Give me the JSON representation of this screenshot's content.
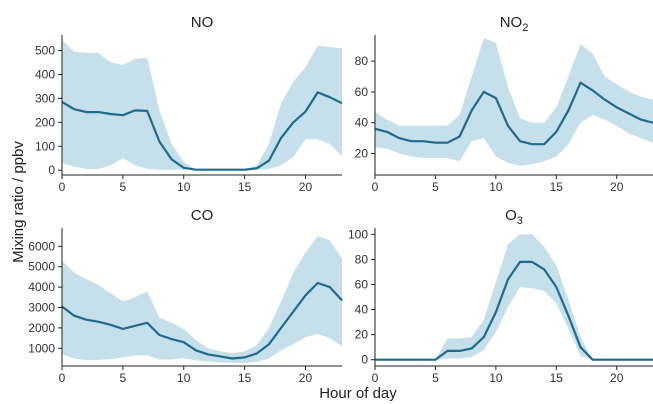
{
  "xlabel": "Hour of day",
  "ylabel": "Mixing ratio / ppbv",
  "colors": {
    "line": "#1f6b8c",
    "band": "#c5e0ea",
    "axis": "#222222"
  },
  "chart_data": [
    {
      "type": "area",
      "title": "NO",
      "title_main": "NO",
      "title_sub": "",
      "xlim": [
        0,
        23
      ],
      "ylim": [
        -20,
        565
      ],
      "xticks": [
        0,
        5,
        10,
        15,
        20
      ],
      "yticks": [
        0,
        100,
        200,
        300,
        400,
        500
      ],
      "x": [
        0,
        1,
        2,
        3,
        4,
        5,
        6,
        7,
        8,
        9,
        10,
        11,
        12,
        13,
        14,
        15,
        16,
        17,
        18,
        19,
        20,
        21,
        22,
        23
      ],
      "series": [
        {
          "values": [
            285,
            255,
            243,
            243,
            235,
            230,
            250,
            248,
            120,
            45,
            10,
            2,
            2,
            2,
            2,
            2,
            8,
            40,
            135,
            200,
            245,
            325,
            305,
            280
          ]
        },
        {
          "values": [
            545,
            495,
            490,
            490,
            450,
            440,
            465,
            470,
            250,
            110,
            35,
            3,
            3,
            3,
            3,
            3,
            20,
            110,
            280,
            370,
            430,
            520,
            515,
            510
          ]
        },
        {
          "values": [
            30,
            15,
            5,
            5,
            20,
            50,
            20,
            5,
            2,
            2,
            2,
            1,
            1,
            1,
            1,
            1,
            2,
            5,
            20,
            55,
            130,
            130,
            110,
            60
          ]
        }
      ]
    },
    {
      "type": "area",
      "title": "NO2",
      "title_main": "NO",
      "title_sub": "2",
      "xlim": [
        0,
        23
      ],
      "ylim": [
        6,
        97
      ],
      "xticks": [
        0,
        5,
        10,
        15,
        20
      ],
      "yticks": [
        20,
        40,
        60,
        80
      ],
      "x": [
        0,
        1,
        2,
        3,
        4,
        5,
        6,
        7,
        8,
        9,
        10,
        11,
        12,
        13,
        14,
        15,
        16,
        17,
        18,
        19,
        20,
        21,
        22,
        23
      ],
      "series": [
        {
          "values": [
            36,
            34,
            30,
            28,
            28,
            27,
            27,
            31,
            48,
            60,
            56,
            38,
            28,
            26,
            26,
            34,
            48,
            66,
            61,
            55,
            50,
            46,
            42,
            40
          ]
        },
        {
          "values": [
            47,
            42,
            38,
            38,
            38,
            38,
            38,
            45,
            70,
            95,
            92,
            63,
            43,
            40,
            40,
            50,
            70,
            91,
            85,
            70,
            65,
            60,
            57,
            55
          ]
        },
        {
          "values": [
            24,
            23,
            20,
            18,
            17,
            17,
            17,
            15,
            28,
            30,
            18,
            14,
            12,
            13,
            15,
            18,
            26,
            40,
            45,
            42,
            38,
            33,
            30,
            27
          ]
        }
      ]
    },
    {
      "type": "area",
      "title": "CO",
      "title_main": "CO",
      "title_sub": "",
      "xlim": [
        0,
        23
      ],
      "ylim": [
        130,
        6900
      ],
      "xticks": [
        0,
        5,
        10,
        15,
        20
      ],
      "yticks": [
        1000,
        2000,
        3000,
        4000,
        5000,
        6000
      ],
      "x": [
        0,
        1,
        2,
        3,
        4,
        5,
        6,
        7,
        8,
        9,
        10,
        11,
        12,
        13,
        14,
        15,
        16,
        17,
        18,
        19,
        20,
        21,
        22,
        23
      ],
      "series": [
        {
          "values": [
            3050,
            2600,
            2400,
            2300,
            2150,
            1950,
            2100,
            2250,
            1650,
            1450,
            1300,
            900,
            700,
            600,
            500,
            550,
            750,
            1200,
            2000,
            2800,
            3600,
            4200,
            4000,
            3350
          ]
        },
        {
          "values": [
            5300,
            4700,
            4400,
            4100,
            3700,
            3300,
            3500,
            3800,
            2500,
            2250,
            1950,
            1400,
            1000,
            850,
            750,
            850,
            1150,
            2000,
            3300,
            4700,
            5700,
            6500,
            6300,
            5400
          ]
        },
        {
          "values": [
            700,
            500,
            420,
            430,
            470,
            550,
            650,
            650,
            450,
            450,
            520,
            400,
            350,
            300,
            280,
            280,
            330,
            500,
            900,
            1200,
            1550,
            1700,
            1500,
            1100
          ]
        }
      ]
    },
    {
      "type": "area",
      "title": "O3",
      "title_main": "O",
      "title_sub": "3",
      "xlim": [
        0,
        23
      ],
      "ylim": [
        -5,
        105
      ],
      "xticks": [
        0,
        5,
        10,
        15,
        20
      ],
      "yticks": [
        0,
        20,
        40,
        60,
        80,
        100
      ],
      "x": [
        0,
        1,
        2,
        3,
        4,
        5,
        6,
        7,
        8,
        9,
        10,
        11,
        12,
        13,
        14,
        15,
        16,
        17,
        18,
        19,
        20,
        21,
        22,
        23
      ],
      "series": [
        {
          "values": [
            0,
            0,
            0,
            0,
            0,
            0,
            7,
            7,
            9,
            18,
            38,
            64,
            78,
            78,
            72,
            58,
            35,
            10,
            0,
            0,
            0,
            0,
            0,
            0
          ]
        },
        {
          "values": [
            0,
            0,
            0,
            0,
            0,
            0,
            17,
            17,
            18,
            32,
            62,
            92,
            100,
            100,
            90,
            75,
            48,
            18,
            0,
            0,
            0,
            0,
            0,
            0
          ]
        },
        {
          "values": [
            0,
            0,
            0,
            0,
            0,
            0,
            1,
            1,
            2,
            8,
            22,
            42,
            58,
            57,
            55,
            45,
            25,
            3,
            0,
            0,
            0,
            0,
            0,
            0
          ]
        }
      ]
    }
  ]
}
